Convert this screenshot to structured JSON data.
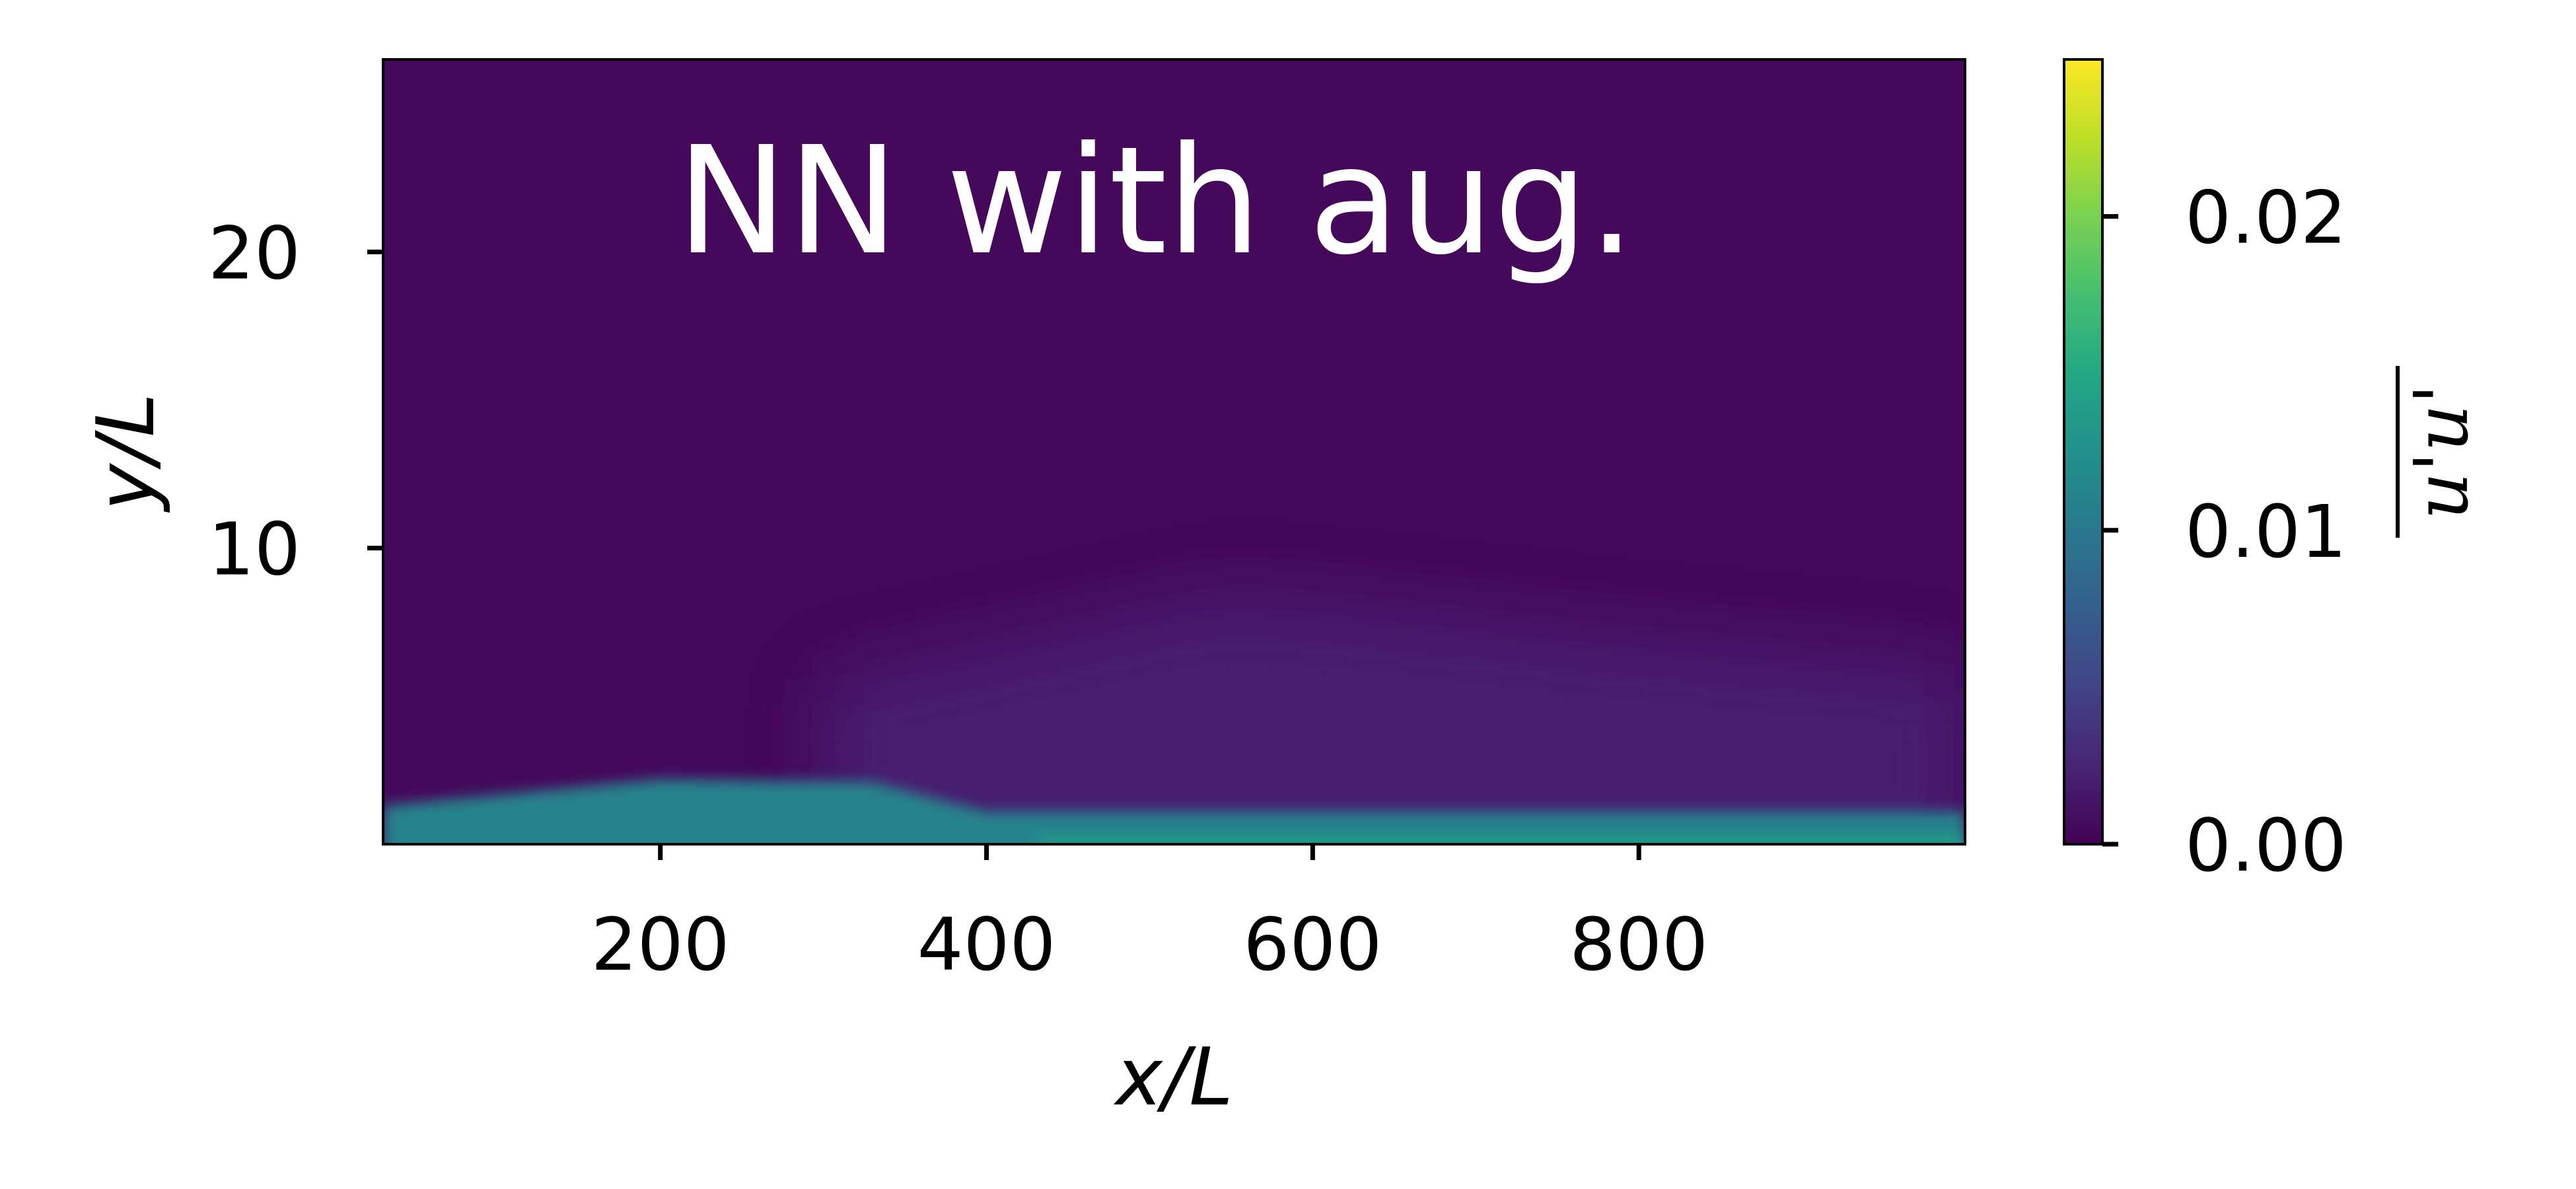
{
  "chart_data": {
    "type": "heatmap",
    "title": "NN with aug.",
    "xlabel": "x/L",
    "ylabel": "y/L",
    "xlim": [
      30,
      1000
    ],
    "ylim": [
      0,
      26.5
    ],
    "x_ticks": [
      200,
      400,
      600,
      800
    ],
    "y_ticks": [
      10,
      20
    ],
    "colormap": "viridis",
    "colorbar": {
      "label": "u'u'",
      "label_overline": true,
      "range": [
        0.0,
        0.025
      ],
      "ticks": [
        0.0,
        0.01,
        0.02
      ],
      "tick_labels": [
        "0.00",
        "0.01",
        "0.02"
      ]
    },
    "field_summary": {
      "background_value": 0.0005,
      "layers": [
        {
          "x": [
            30,
            200,
            330,
            400,
            1000
          ],
          "y_top": [
            1.3,
            2.2,
            2.1,
            1.1,
            1.1
          ],
          "value": 0.011
        },
        {
          "x": [
            430,
            650,
            1000
          ],
          "y_top": [
            0.3,
            0.3,
            0.3
          ],
          "value": 0.0135
        },
        {
          "x": [
            300,
            550,
            800,
            1000
          ],
          "y_top": [
            5.5,
            8.5,
            7.0,
            6.0
          ],
          "value": 0.0025
        }
      ]
    },
    "grid": false
  }
}
